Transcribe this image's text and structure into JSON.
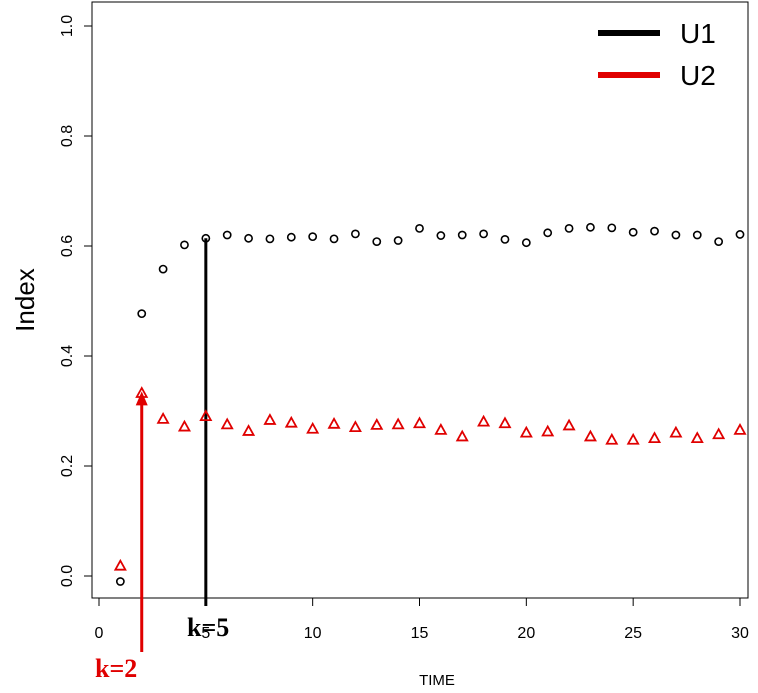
{
  "chart_data": {
    "type": "scatter",
    "title": "",
    "xlabel": "TIME",
    "ylabel": "Index",
    "xlim": [
      0,
      31
    ],
    "ylim": [
      -0.04,
      1.06
    ],
    "xticks": [
      0,
      5,
      10,
      15,
      20,
      25,
      30
    ],
    "yticks": [
      0.0,
      0.2,
      0.4,
      0.6,
      0.8,
      1.0
    ],
    "grid": false,
    "legend_position": "top-right",
    "series": [
      {
        "name": "U1",
        "color": "#000000",
        "marker": "circle",
        "x": [
          1,
          2,
          3,
          4,
          5,
          6,
          7,
          8,
          9,
          10,
          11,
          12,
          13,
          14,
          15,
          16,
          17,
          18,
          19,
          20,
          21,
          22,
          23,
          24,
          25,
          26,
          27,
          28,
          29,
          30
        ],
        "values": [
          -0.01,
          0.477,
          0.558,
          0.602,
          0.614,
          0.62,
          0.614,
          0.613,
          0.616,
          0.617,
          0.613,
          0.622,
          0.608,
          0.61,
          0.632,
          0.619,
          0.62,
          0.622,
          0.612,
          0.606,
          0.624,
          0.632,
          0.634,
          0.633,
          0.625,
          0.627,
          0.62,
          0.62,
          0.608,
          0.621
        ]
      },
      {
        "name": "U2",
        "color": "#e00000",
        "marker": "triangle",
        "x": [
          1,
          2,
          3,
          4,
          5,
          6,
          7,
          8,
          9,
          10,
          11,
          12,
          13,
          14,
          15,
          16,
          17,
          18,
          19,
          20,
          21,
          22,
          23,
          24,
          25,
          26,
          27,
          28,
          29,
          30
        ],
        "values": [
          0.018,
          0.332,
          0.285,
          0.271,
          0.29,
          0.275,
          0.263,
          0.283,
          0.278,
          0.267,
          0.276,
          0.27,
          0.274,
          0.275,
          0.277,
          0.265,
          0.253,
          0.28,
          0.277,
          0.26,
          0.262,
          0.273,
          0.253,
          0.247,
          0.247,
          0.25,
          0.26,
          0.25,
          0.257,
          0.265
        ]
      }
    ],
    "annotations": [
      {
        "text": "k=5",
        "x": 5,
        "y_top": 0.614,
        "color": "#000000"
      },
      {
        "text": "k=2",
        "x": 2,
        "y_top": 0.332,
        "color": "#e00000"
      }
    ]
  }
}
